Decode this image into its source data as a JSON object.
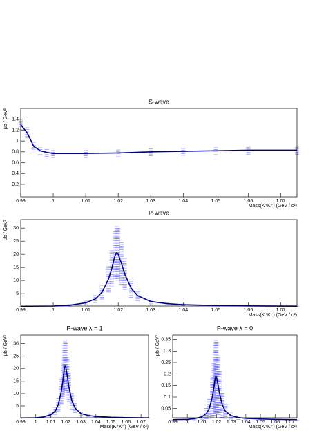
{
  "chart_data": [
    {
      "type": "line",
      "title": "S-wave",
      "y_label": "μb / GeV²",
      "x_label": "Mass(K⁺K⁻) (GeV / c²)",
      "x": [
        0.99,
        0.992,
        0.994,
        0.996,
        0.998,
        1.0,
        1.01,
        1.02,
        1.03,
        1.04,
        1.05,
        1.06,
        1.075
      ],
      "series": [
        {
          "color": "#000080",
          "values": [
            1.3,
            1.15,
            0.9,
            0.82,
            0.79,
            0.77,
            0.77,
            0.78,
            0.8,
            0.81,
            0.82,
            0.83,
            0.83
          ],
          "errors": [
            0.1,
            0.1,
            0.09,
            0.08,
            0.08,
            0.08,
            0.08,
            0.08,
            0.08,
            0.08,
            0.08,
            0.08,
            0.08
          ]
        }
      ],
      "error_color": "#6464ff",
      "xlim": [
        0.99,
        1.075
      ],
      "xticks": [
        0.99,
        1,
        1.01,
        1.02,
        1.03,
        1.04,
        1.05,
        1.06,
        1.07
      ],
      "ylim": [
        -0.03,
        1.6
      ],
      "yticks": [
        0.2,
        0.4,
        0.6,
        0.8,
        1,
        1.2,
        1.4
      ]
    },
    {
      "type": "line",
      "title": "P-wave",
      "y_label": "μb / GeV²",
      "x_label": "Mass(K⁺K⁻) (GeV / c²)",
      "x": [
        0.99,
        1.0,
        1.005,
        1.01,
        1.013,
        1.015,
        1.017,
        1.018,
        1.019,
        1.0195,
        1.02,
        1.021,
        1.022,
        1.024,
        1.026,
        1.03,
        1.035,
        1.04,
        1.05,
        1.06,
        1.075
      ],
      "series": [
        {
          "color": "#000080",
          "values": [
            0.2,
            0.3,
            0.6,
            1.5,
            3,
            5.5,
            10.5,
            14.5,
            19.5,
            20.5,
            20,
            16.5,
            12.5,
            7,
            4.2,
            2,
            1.2,
            0.8,
            0.5,
            0.35,
            0.25
          ],
          "errors": [
            0.2,
            0.2,
            0.4,
            0.8,
            1.5,
            2.7,
            5,
            7,
            9.5,
            10.5,
            10,
            8,
            6,
            3.5,
            2,
            1,
            0.6,
            0.4,
            0.3,
            0.2,
            0.2
          ]
        }
      ],
      "error_color": "#6464ff",
      "xlim": [
        0.99,
        1.075
      ],
      "xticks": [
        0.99,
        1,
        1.01,
        1.02,
        1.03,
        1.04,
        1.05,
        1.06,
        1.07
      ],
      "ylim": [
        0.3,
        33.2
      ],
      "yticks": [
        5,
        10,
        15,
        20,
        25,
        30
      ]
    },
    {
      "type": "line",
      "title": "P-wave λ = 1",
      "y_label": "μb / GeV²",
      "x_label": "Mass(K⁺K⁻) (GeV / c²)",
      "x": [
        0.99,
        1.0,
        1.005,
        1.01,
        1.013,
        1.015,
        1.017,
        1.018,
        1.019,
        1.0195,
        1.02,
        1.021,
        1.022,
        1.024,
        1.026,
        1.03,
        1.035,
        1.04,
        1.05,
        1.06,
        1.075
      ],
      "series": [
        {
          "color": "#000080",
          "values": [
            0.2,
            0.3,
            0.6,
            1.5,
            3,
            5.6,
            10.8,
            15,
            20,
            21,
            20.5,
            17,
            12.8,
            7.2,
            4.3,
            2,
            1.2,
            0.8,
            0.5,
            0.35,
            0.25
          ],
          "errors": [
            0.2,
            0.2,
            0.4,
            0.8,
            1.5,
            2.7,
            5,
            7,
            9.5,
            10.5,
            10,
            8,
            6,
            3.5,
            2,
            1,
            0.6,
            0.4,
            0.3,
            0.2,
            0.2
          ]
        }
      ],
      "error_color": "#6464ff",
      "xlim": [
        0.99,
        1.075
      ],
      "xticks": [
        0.99,
        1,
        1.01,
        1.02,
        1.03,
        1.04,
        1.05,
        1.06,
        1.07
      ],
      "ylim": [
        0.3,
        33.5
      ],
      "yticks": [
        5,
        10,
        15,
        20,
        25,
        30
      ]
    },
    {
      "type": "line",
      "title": "P-wave λ = 0",
      "y_label": "μb / GeV²",
      "x_label": "Mass(K⁺K⁻) (GeV / c²)",
      "x": [
        0.99,
        1.0,
        1.005,
        1.01,
        1.013,
        1.015,
        1.017,
        1.018,
        1.019,
        1.0195,
        1.02,
        1.021,
        1.022,
        1.024,
        1.026,
        1.03,
        1.035,
        1.04,
        1.05,
        1.06,
        1.075
      ],
      "series": [
        {
          "color": "#000080",
          "values": [
            0.002,
            0.003,
            0.006,
            0.014,
            0.028,
            0.051,
            0.097,
            0.134,
            0.18,
            0.19,
            0.185,
            0.153,
            0.116,
            0.065,
            0.039,
            0.019,
            0.011,
            0.007,
            0.005,
            0.003,
            0.002
          ],
          "errors": [
            0.003,
            0.004,
            0.006,
            0.012,
            0.024,
            0.045,
            0.085,
            0.115,
            0.15,
            0.16,
            0.155,
            0.13,
            0.1,
            0.055,
            0.033,
            0.016,
            0.01,
            0.007,
            0.005,
            0.004,
            0.003
          ]
        }
      ],
      "error_color": "#6464ff",
      "xlim": [
        0.99,
        1.075
      ],
      "xticks": [
        0.99,
        1,
        1.01,
        1.02,
        1.03,
        1.04,
        1.05,
        1.06,
        1.07
      ],
      "ylim": [
        0.01,
        0.37
      ],
      "yticks": [
        0.05,
        0.1,
        0.15,
        0.2,
        0.25,
        0.3,
        0.35
      ]
    }
  ]
}
